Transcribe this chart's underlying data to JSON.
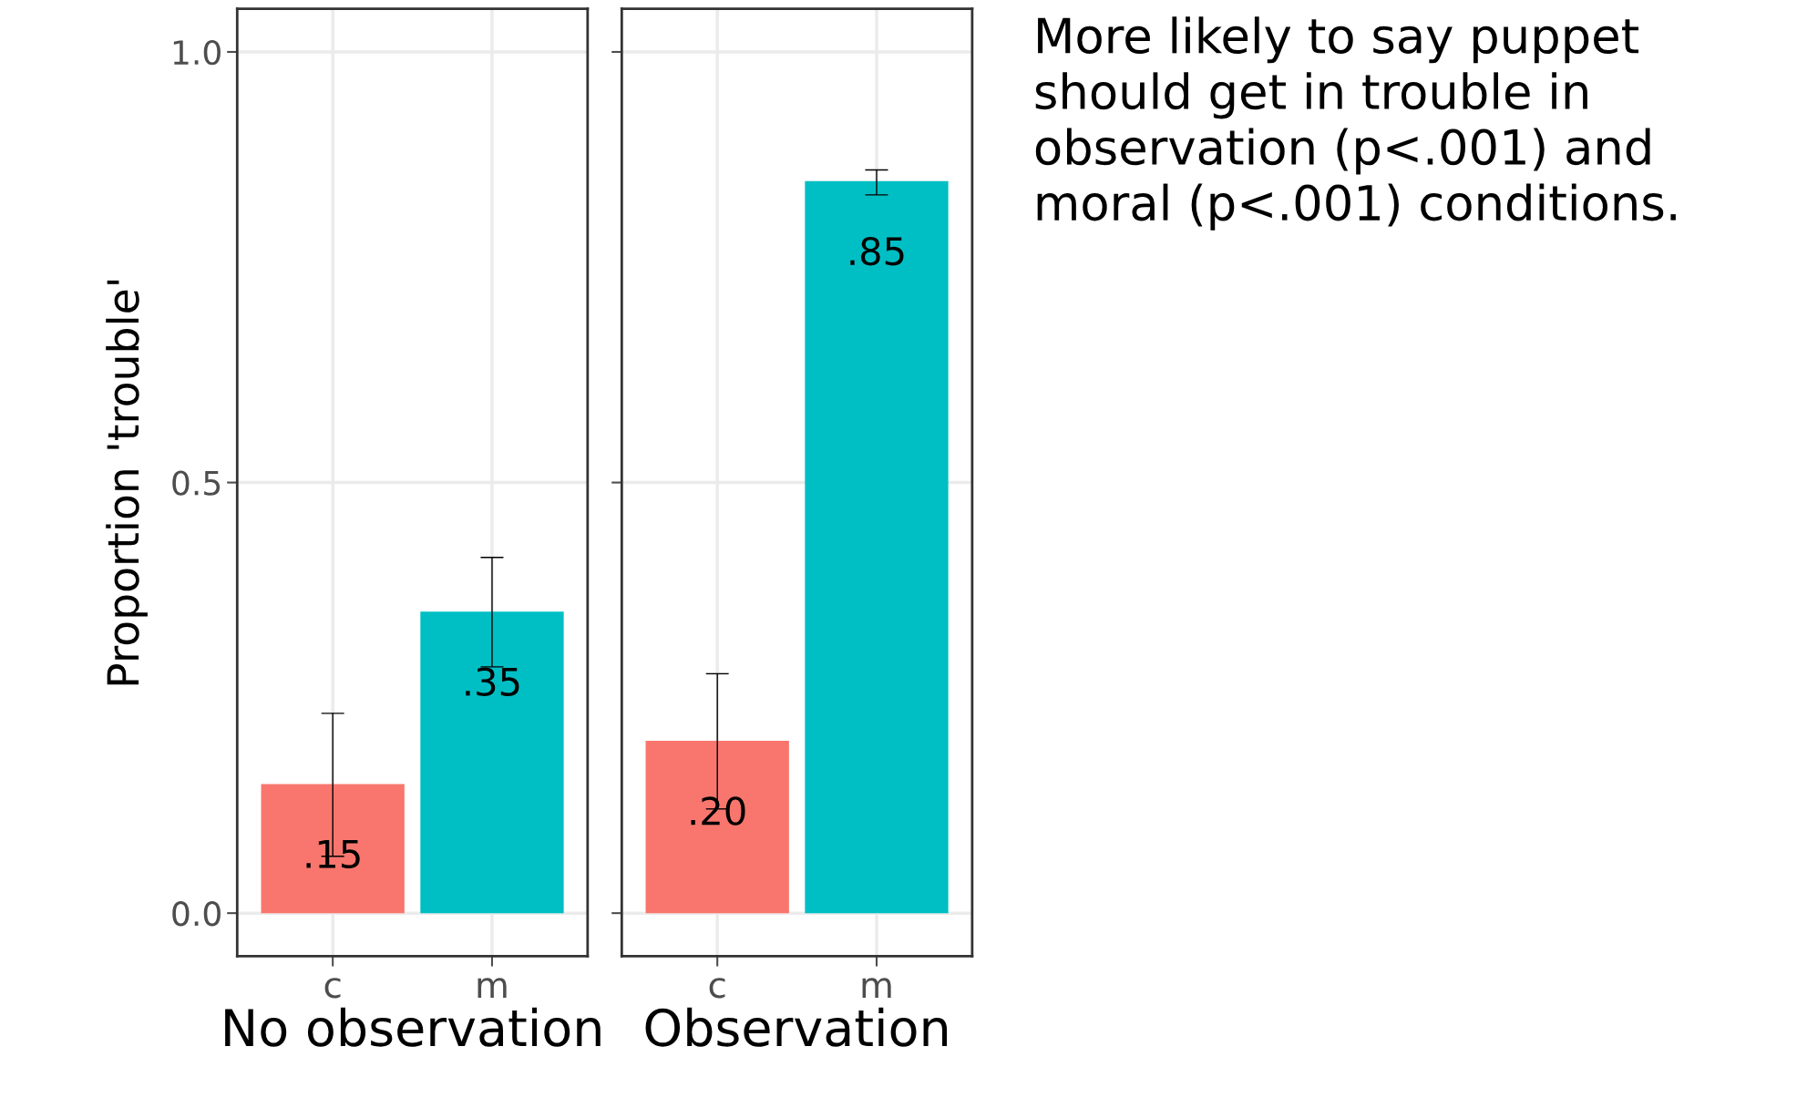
{
  "chart_data": [
    {
      "type": "bar",
      "xlabel": "No observation",
      "ylabel": "Proportion 'trouble'",
      "categories": [
        "c",
        "m"
      ],
      "values": [
        0.15,
        0.35
      ],
      "colors": [
        "#f8766d",
        "#00bfc4"
      ],
      "errors": [
        [
          0.066,
          0.232
        ],
        [
          0.286,
          0.413
        ]
      ],
      "value_labels": [
        ".15",
        ".35"
      ],
      "ylim": [
        -0.05,
        1.05
      ],
      "yticks": [
        {
          "value": 0,
          "label": "0.0"
        },
        {
          "value": 0.5,
          "label": "0.5"
        },
        {
          "value": 1,
          "label": "1.0"
        }
      ],
      "grid": true,
      "legend": false
    },
    {
      "type": "bar",
      "xlabel": "Observation",
      "categories": [
        "c",
        "m"
      ],
      "values": [
        0.2,
        0.85
      ],
      "colors": [
        "#f8766d",
        "#00bfc4"
      ],
      "errors": [
        [
          0.121,
          0.278
        ],
        [
          0.834,
          0.863
        ]
      ],
      "value_labels": [
        ".20",
        ".85"
      ],
      "ylim": [
        -0.05,
        1.05
      ],
      "grid": true,
      "legend": false,
      "tick_labels": "x",
      "annotations": [
        "More likely to say puppet should get in trouble in observation (p<.001) and moral (p<.001) conditions."
      ]
    }
  ]
}
